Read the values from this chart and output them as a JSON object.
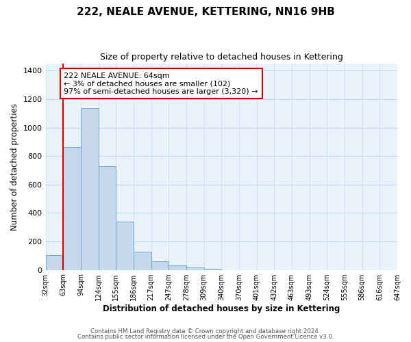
{
  "title": "222, NEALE AVENUE, KETTERING, NN16 9HB",
  "subtitle": "Size of property relative to detached houses in Kettering",
  "xlabel": "Distribution of detached houses by size in Kettering",
  "ylabel": "Number of detached properties",
  "bar_values": [
    105,
    865,
    1140,
    730,
    340,
    130,
    60,
    30,
    18,
    10,
    0,
    0,
    0,
    0,
    0,
    0,
    0,
    0,
    0,
    0
  ],
  "bin_labels": [
    "32sqm",
    "63sqm",
    "94sqm",
    "124sqm",
    "155sqm",
    "186sqm",
    "217sqm",
    "247sqm",
    "278sqm",
    "309sqm",
    "340sqm",
    "370sqm",
    "401sqm",
    "432sqm",
    "463sqm",
    "493sqm",
    "524sqm",
    "555sqm",
    "586sqm",
    "616sqm",
    "647sqm"
  ],
  "bar_color": "#c5d8ee",
  "bar_edge_color": "#6aaad4",
  "vline_color": "#cc0000",
  "annotation_text": "222 NEALE AVENUE: 64sqm\n← 3% of detached houses are smaller (102)\n97% of semi-detached houses are larger (3,320) →",
  "annotation_box_color": "#ffffff",
  "annotation_border_color": "#cc0000",
  "ylim": [
    0,
    1450
  ],
  "yticks": [
    0,
    200,
    400,
    600,
    800,
    1000,
    1200,
    1400
  ],
  "footer_line1": "Contains HM Land Registry data © Crown copyright and database right 2024.",
  "footer_line2": "Contains public sector information licensed under the Open Government Licence v3.0.",
  "background_color": "#ffffff",
  "plot_bg_color": "#eaf3fb",
  "grid_color": "#c0d8ec"
}
